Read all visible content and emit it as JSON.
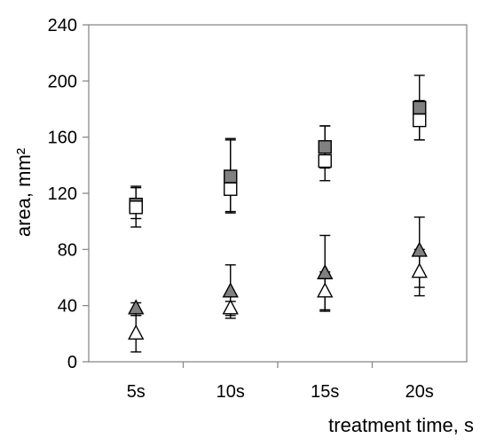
{
  "chart_data": {
    "type": "scatter",
    "title": "",
    "xlabel": "treatment time, s",
    "ylabel": "area, mm²",
    "categories": [
      "5s",
      "10s",
      "15s",
      "20s"
    ],
    "ylim": [
      0,
      240
    ],
    "yticks": [
      "0",
      "40",
      "80",
      "120",
      "160",
      "200",
      "240"
    ],
    "grid": false,
    "legend": "none",
    "series": [
      {
        "marker": "square",
        "fill": "#808080",
        "values": [
          112,
          132,
          153,
          181
        ],
        "error_low": [
          102,
          107,
          138,
          158
        ],
        "error_high": [
          124,
          159,
          168,
          204
        ]
      },
      {
        "marker": "square",
        "fill": "#ffffff",
        "values": [
          110,
          123,
          143,
          172
        ],
        "error_low": [
          96,
          106,
          129,
          158
        ],
        "error_high": [
          125,
          158,
          168,
          186
        ]
      },
      {
        "marker": "triangle",
        "fill": "#808080",
        "values": [
          38,
          50,
          63,
          79
        ],
        "error_low": [
          33,
          31,
          37,
          53
        ],
        "error_high": [
          42,
          69,
          90,
          103
        ]
      },
      {
        "marker": "triangle",
        "fill": "#ffffff",
        "values": [
          20,
          38,
          50,
          64
        ],
        "error_low": [
          7,
          33,
          36,
          47
        ],
        "error_high": [
          33,
          43,
          64,
          80
        ]
      }
    ]
  }
}
